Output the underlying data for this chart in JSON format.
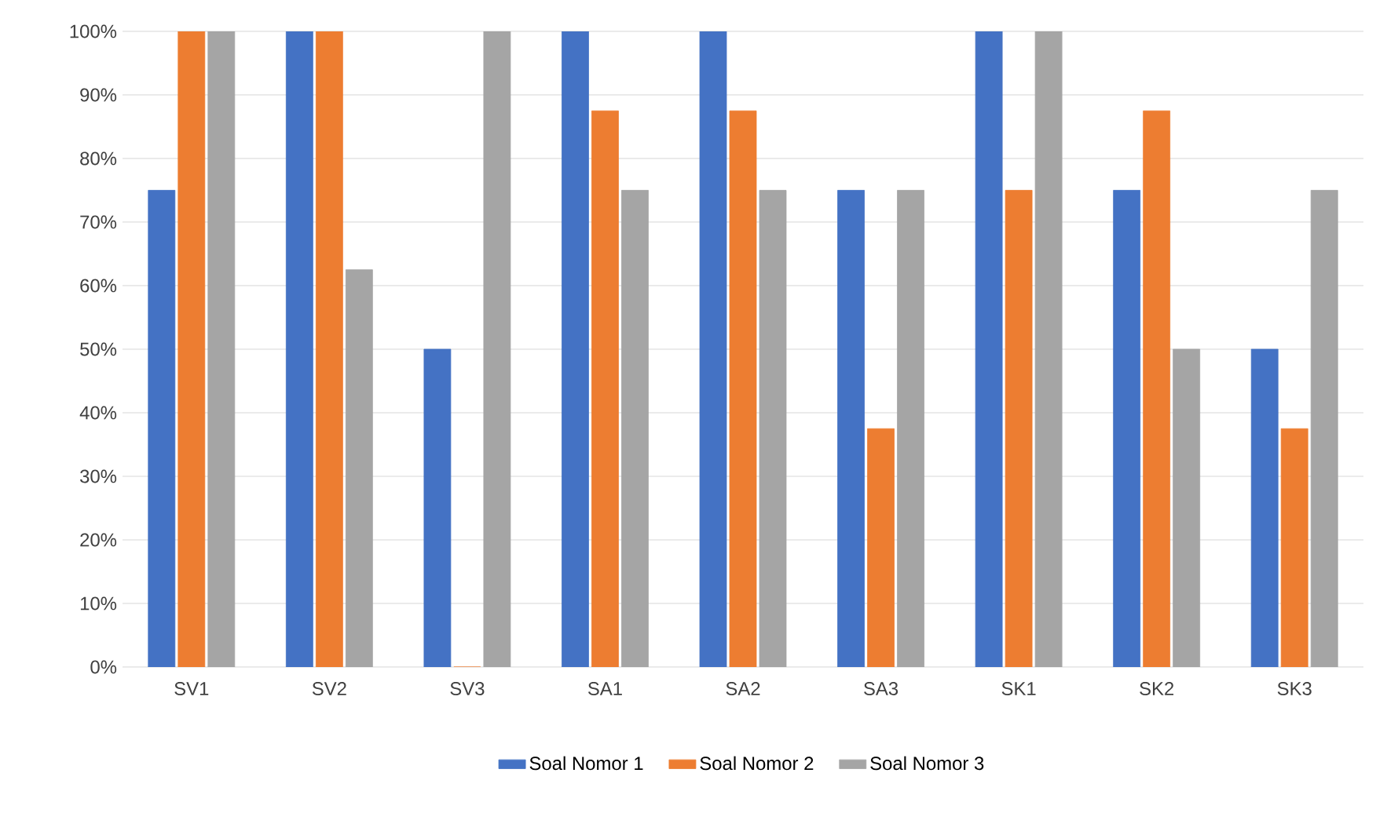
{
  "chart_data": {
    "type": "bar",
    "categories": [
      "SV1",
      "SV2",
      "SV3",
      "SA1",
      "SA2",
      "SA3",
      "SK1",
      "SK2",
      "SK3"
    ],
    "series": [
      {
        "name": "Soal Nomor 1",
        "color": "#4472c4",
        "values": [
          75,
          100,
          50,
          100,
          100,
          75,
          100,
          75,
          50
        ]
      },
      {
        "name": "Soal Nomor 2",
        "color": "#ed7d31",
        "values": [
          100,
          100,
          0,
          87.5,
          87.5,
          37.5,
          75,
          87.5,
          37.5
        ]
      },
      {
        "name": "Soal Nomor 3",
        "color": "#a5a5a5",
        "values": [
          100,
          62.5,
          100,
          75,
          75,
          75,
          100,
          50,
          75
        ]
      }
    ],
    "ylim": [
      0,
      100
    ],
    "yticks": [
      {
        "value": 0,
        "label": "0%"
      },
      {
        "value": 10,
        "label": "10%"
      },
      {
        "value": 20,
        "label": "20%"
      },
      {
        "value": 30,
        "label": "30%"
      },
      {
        "value": 40,
        "label": "40%"
      },
      {
        "value": 50,
        "label": "50%"
      },
      {
        "value": 60,
        "label": "60%"
      },
      {
        "value": 70,
        "label": "70%"
      },
      {
        "value": 80,
        "label": "80%"
      },
      {
        "value": 90,
        "label": "90%"
      },
      {
        "value": 100,
        "label": "100%"
      }
    ],
    "grid": "y",
    "legend": "bottom"
  }
}
